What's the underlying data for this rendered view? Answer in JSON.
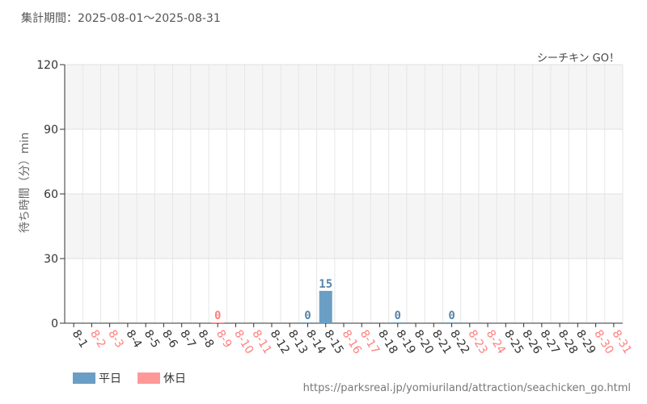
{
  "header": {
    "period_label": "集計期間：",
    "period_value": "2025-08-01〜2025-08-31",
    "attraction_name": "シーチキン GO！"
  },
  "colors": {
    "weekday": "#6b9ec4",
    "holiday": "#ff9999",
    "weekday_label": "#5a84a8",
    "holiday_label": "#ff8080"
  },
  "legend": [
    {
      "label": "平日",
      "color": "#6b9ec4"
    },
    {
      "label": "休日",
      "color": "#ff9999"
    }
  ],
  "source_url": "https://parksreal.jp/yomiuriland/attraction/seachicken_go.html",
  "chart_data": {
    "type": "bar",
    "ylabel": "待ち時間（分）min",
    "ylim": [
      0,
      120
    ],
    "yticks": [
      0,
      30,
      60,
      90,
      120
    ],
    "grid": true,
    "legend_position": "bottom-left",
    "categories": [
      "8-1",
      "8-2",
      "8-3",
      "8-4",
      "8-5",
      "8-6",
      "8-7",
      "8-8",
      "8-9",
      "8-10",
      "8-11",
      "8-12",
      "8-13",
      "8-14",
      "8-15",
      "8-16",
      "8-17",
      "8-18",
      "8-19",
      "8-20",
      "8-21",
      "8-22",
      "8-23",
      "8-24",
      "8-25",
      "8-26",
      "8-27",
      "8-28",
      "8-29",
      "8-30",
      "8-31"
    ],
    "day_type": [
      "weekday",
      "holiday",
      "holiday",
      "weekday",
      "weekday",
      "weekday",
      "weekday",
      "weekday",
      "holiday",
      "holiday",
      "holiday",
      "weekday",
      "weekday",
      "weekday",
      "weekday",
      "holiday",
      "holiday",
      "weekday",
      "weekday",
      "weekday",
      "weekday",
      "weekday",
      "holiday",
      "holiday",
      "weekday",
      "weekday",
      "weekday",
      "weekday",
      "weekday",
      "holiday",
      "holiday"
    ],
    "values": [
      null,
      null,
      null,
      null,
      null,
      null,
      null,
      null,
      0,
      null,
      null,
      null,
      null,
      0,
      15,
      null,
      null,
      null,
      0,
      null,
      null,
      0,
      null,
      null,
      null,
      null,
      null,
      null,
      null,
      null,
      null
    ]
  }
}
